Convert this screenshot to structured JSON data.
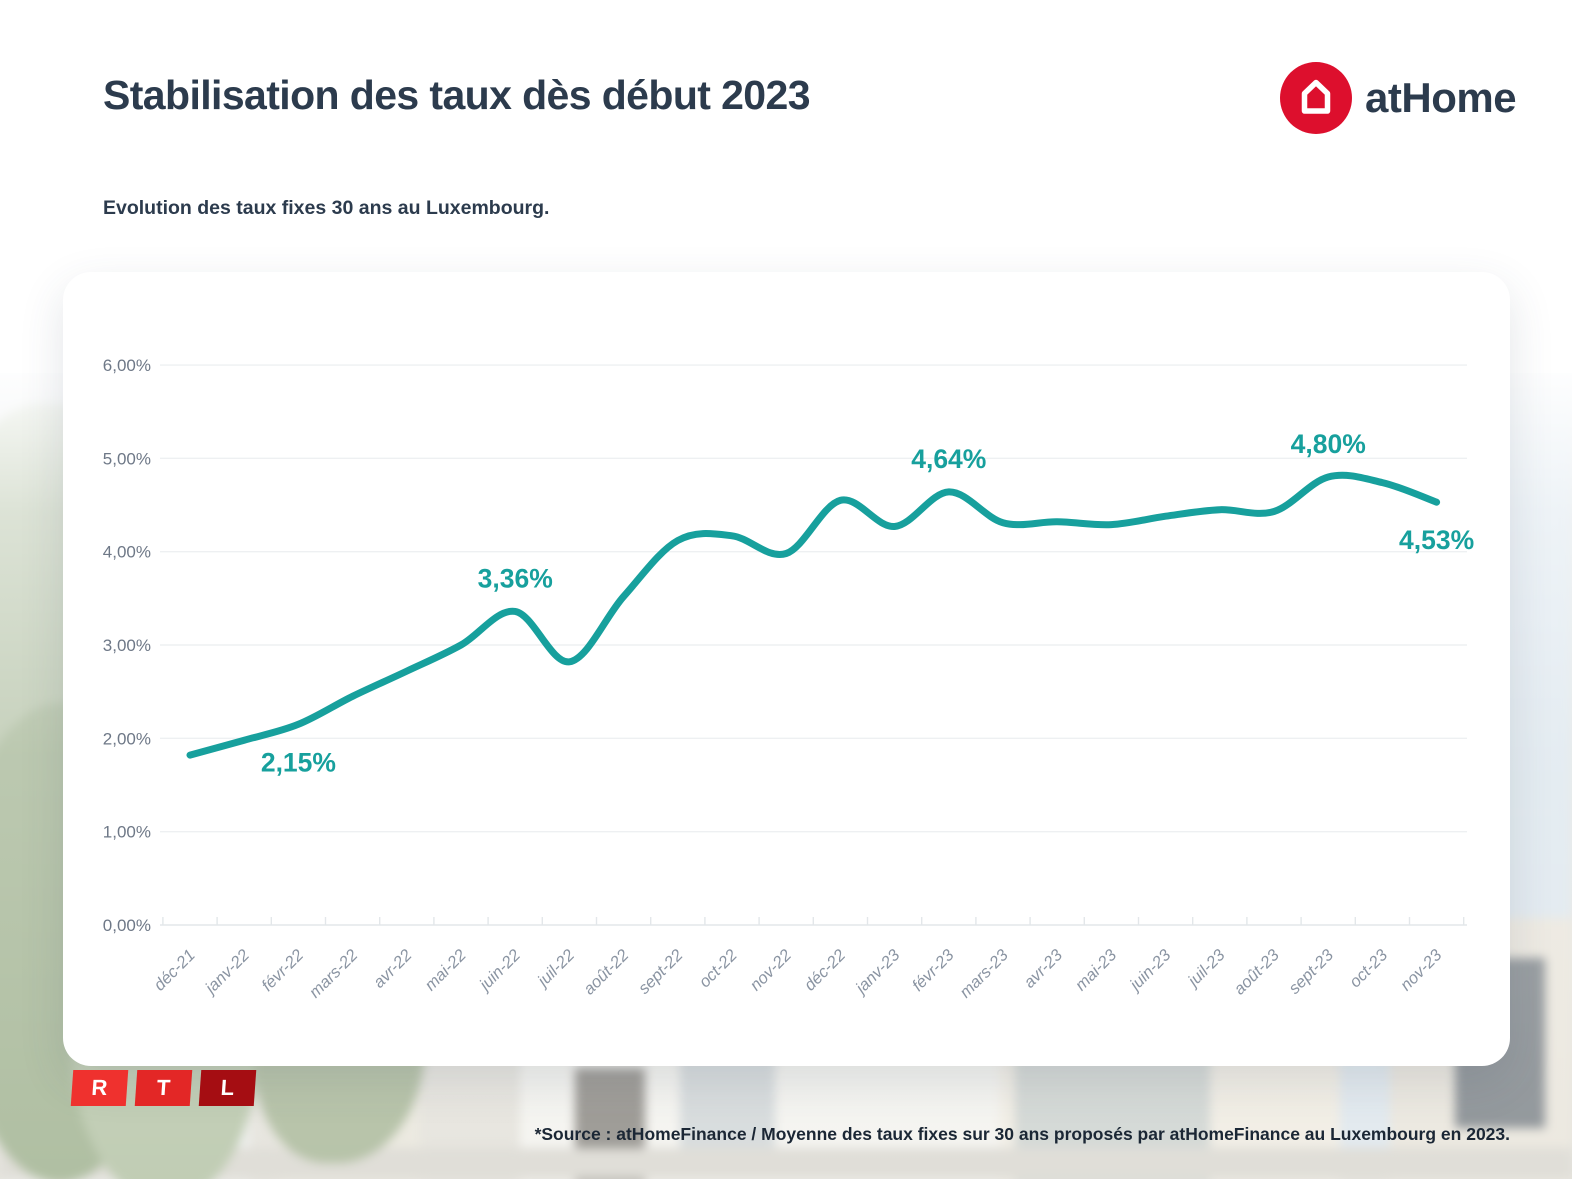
{
  "header": {
    "title": "Stabilisation des taux dès début 2023",
    "subtitle": "Evolution des taux fixes 30 ans au Luxembourg."
  },
  "branding": {
    "athome": {
      "prefix": "at",
      "suffix": "Home",
      "red": "#dd0f2d"
    }
  },
  "footer": {
    "source_note": "*Source : atHomeFinance / Moyenne des taux fixes sur 30 ans proposés par atHomeFinance au Luxembourg en 2023.",
    "rtl_logo": {
      "letters": [
        "R",
        "T",
        "L"
      ],
      "colors": [
        "#ef312e",
        "#e32726",
        "#a50d12"
      ]
    }
  },
  "chart_data": {
    "type": "line",
    "title": "Evolution des taux fixes 30 ans au Luxembourg",
    "categories": [
      "déc-21",
      "janv-22",
      "févr-22",
      "mars-22",
      "avr-22",
      "mai-22",
      "juin-22",
      "juil-22",
      "août-22",
      "sept-22",
      "oct-22",
      "nov-22",
      "déc-22",
      "janv-23",
      "févr-23",
      "mars-23",
      "avr-23",
      "mai-23",
      "juin-23",
      "juil-23",
      "août-23",
      "sept-23",
      "oct-23",
      "nov-23"
    ],
    "series": [
      {
        "name": "Taux fixes 30 ans",
        "color": "#17a09d",
        "values": [
          1.82,
          1.98,
          2.15,
          2.45,
          2.72,
          3.0,
          3.36,
          2.82,
          3.52,
          4.12,
          4.17,
          3.98,
          4.55,
          4.27,
          4.64,
          4.31,
          4.32,
          4.29,
          4.38,
          4.45,
          4.43,
          4.8,
          4.74,
          4.53
        ]
      }
    ],
    "y_ticks": [
      "0,00%",
      "1,00%",
      "2,00%",
      "3,00%",
      "4,00%",
      "5,00%",
      "6,00%"
    ],
    "ylim": [
      0,
      6
    ],
    "grid": true,
    "legend_position": "none",
    "annotations": [
      {
        "label": "2,15%",
        "category": "févr-22",
        "index": 2,
        "value": 2.15,
        "position": "below"
      },
      {
        "label": "3,36%",
        "category": "juin-22",
        "index": 6,
        "value": 3.36,
        "position": "above"
      },
      {
        "label": "4,64%",
        "category": "févr-23",
        "index": 14,
        "value": 4.64,
        "position": "above"
      },
      {
        "label": "4,80%",
        "category": "sept-23",
        "index": 21,
        "value": 4.8,
        "position": "above"
      },
      {
        "label": "4,53%",
        "category": "nov-23",
        "index": 23,
        "value": 4.53,
        "position": "below"
      }
    ],
    "colors": {
      "line": "#17a09d",
      "gridline": "#eef0f2",
      "axis_line": "#e3e7ea",
      "y_label": "#6e7887",
      "x_label": "#8a94a2",
      "annotation": "#17a09d"
    }
  }
}
